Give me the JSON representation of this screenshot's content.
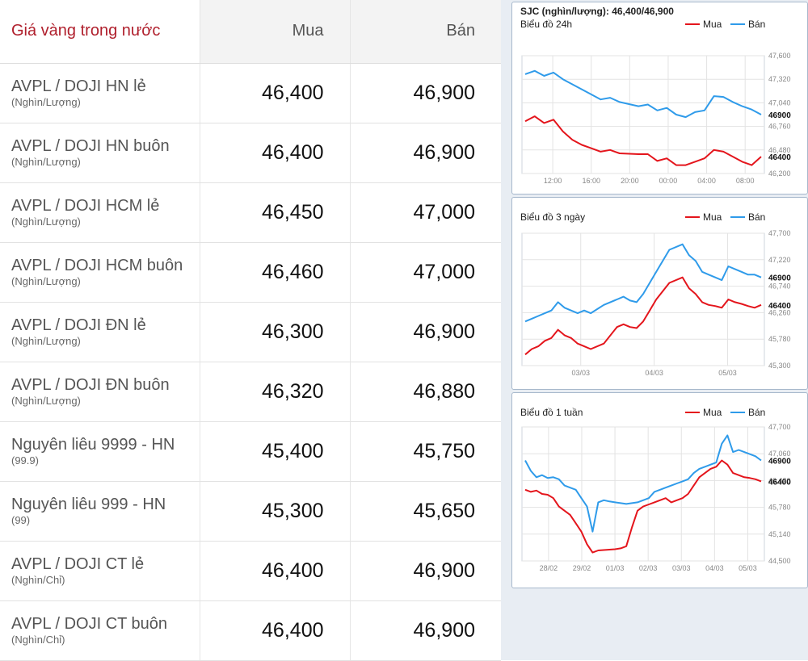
{
  "table": {
    "header": {
      "name": "Giá vàng trong nước",
      "buy": "Mua",
      "sell": "Bán"
    },
    "rows": [
      {
        "name": "AVPL / DOJI HN lẻ",
        "unit": "(Nghìn/Lượng)",
        "buy": "46,400",
        "sell": "46,900"
      },
      {
        "name": "AVPL / DOJI HN buôn",
        "unit": "(Nghìn/Lượng)",
        "buy": "46,400",
        "sell": "46,900"
      },
      {
        "name": "AVPL / DOJI HCM lẻ",
        "unit": "(Nghìn/Lượng)",
        "buy": "46,450",
        "sell": "47,000"
      },
      {
        "name": "AVPL / DOJI HCM buôn",
        "unit": "(Nghìn/Lượng)",
        "buy": "46,460",
        "sell": "47,000"
      },
      {
        "name": "AVPL / DOJI ĐN lẻ",
        "unit": "(Nghìn/Lượng)",
        "buy": "46,300",
        "sell": "46,900"
      },
      {
        "name": "AVPL / DOJI ĐN buôn",
        "unit": "(Nghìn/Lượng)",
        "buy": "46,320",
        "sell": "46,880"
      },
      {
        "name": "Nguyên liêu 9999 - HN",
        "unit": "(99.9)",
        "buy": "45,400",
        "sell": "45,750"
      },
      {
        "name": "Nguyên liêu 999 - HN",
        "unit": "(99)",
        "buy": "45,300",
        "sell": "45,650"
      },
      {
        "name": "AVPL / DOJI CT lẻ",
        "unit": "(Nghìn/Chỉ)",
        "buy": "46,400",
        "sell": "46,900"
      },
      {
        "name": "AVPL / DOJI CT buôn",
        "unit": "(Nghìn/Chỉ)",
        "buy": "46,400",
        "sell": "46,900"
      }
    ]
  },
  "charts": {
    "colors": {
      "mua": "#e4151c",
      "ban": "#2f9bea",
      "grid": "#e3e3e3",
      "frame": "#a7b8cc"
    },
    "legend": {
      "mua": "Mua",
      "ban": "Bán"
    },
    "header_title": "SJC (nghìn/lượng): 46,400/46,900"
  },
  "chart_data": [
    {
      "type": "line",
      "title": "Biểu đồ 24h",
      "x_ticks": [
        "12:00",
        "16:00",
        "20:00",
        "00:00",
        "04:00",
        "08:00"
      ],
      "y_ticks": [
        46200,
        46480,
        46760,
        47040,
        47320,
        47600
      ],
      "y_tick_labels": [
        "46,200",
        "46,480",
        "46,760",
        "47,040",
        "47,320",
        "47,600"
      ],
      "ylim": [
        46200,
        47600
      ],
      "last_labels": {
        "ban": "46900",
        "mua": "46400"
      },
      "series": [
        {
          "name": "Bán",
          "key": "ban",
          "x": [
            0,
            1,
            2,
            3,
            4,
            5,
            6,
            7,
            8,
            9,
            10,
            12,
            13,
            14,
            15,
            16,
            17,
            18,
            19,
            20,
            21,
            22,
            23,
            24,
            25
          ],
          "y": [
            47380,
            47420,
            47360,
            47400,
            47320,
            47260,
            47200,
            47140,
            47080,
            47100,
            47050,
            47000,
            47020,
            46950,
            46980,
            46900,
            46870,
            46930,
            46950,
            47120,
            47110,
            47050,
            47000,
            46960,
            46900
          ]
        },
        {
          "name": "Mua",
          "key": "mua",
          "x": [
            0,
            1,
            2,
            3,
            4,
            5,
            6,
            7,
            8,
            9,
            10,
            12,
            13,
            14,
            15,
            16,
            17,
            18,
            19,
            20,
            21,
            22,
            23,
            24,
            25
          ],
          "y": [
            46820,
            46880,
            46800,
            46840,
            46700,
            46600,
            46540,
            46500,
            46460,
            46480,
            46440,
            46430,
            46430,
            46350,
            46380,
            46300,
            46300,
            46340,
            46380,
            46480,
            46460,
            46400,
            46340,
            46300,
            46400
          ]
        }
      ]
    },
    {
      "type": "line",
      "title": "Biểu đồ 3 ngày",
      "x_ticks": [
        "03/03",
        "04/03",
        "05/03"
      ],
      "y_ticks": [
        45300,
        45780,
        46260,
        46740,
        47220,
        47700
      ],
      "y_tick_labels": [
        "45,300",
        "45,780",
        "46,260",
        "46,740",
        "47,220",
        "47,700"
      ],
      "ylim": [
        45300,
        47700
      ],
      "last_labels": {
        "ban": "46900",
        "mua": "46400"
      },
      "series": [
        {
          "name": "Bán",
          "key": "ban",
          "x": [
            0,
            2,
            4,
            6,
            8,
            10,
            12,
            14,
            16,
            18,
            20,
            24,
            28,
            30,
            32,
            34,
            36,
            38,
            40,
            44,
            48,
            50,
            52,
            54,
            56,
            58,
            60,
            62,
            64,
            66,
            68,
            70,
            72
          ],
          "y": [
            46100,
            46150,
            46200,
            46250,
            46300,
            46450,
            46350,
            46300,
            46250,
            46300,
            46250,
            46400,
            46500,
            46550,
            46480,
            46450,
            46600,
            46800,
            47000,
            47400,
            47500,
            47300,
            47200,
            47000,
            46950,
            46900,
            46850,
            47100,
            47050,
            47000,
            46950,
            46950,
            46900
          ]
        },
        {
          "name": "Mua",
          "key": "mua",
          "x": [
            0,
            2,
            4,
            6,
            8,
            10,
            12,
            14,
            16,
            18,
            20,
            24,
            28,
            30,
            32,
            34,
            36,
            38,
            40,
            44,
            48,
            50,
            52,
            54,
            56,
            58,
            60,
            62,
            64,
            66,
            68,
            70,
            72
          ],
          "y": [
            45500,
            45600,
            45650,
            45750,
            45800,
            45950,
            45850,
            45800,
            45700,
            45650,
            45600,
            45700,
            46000,
            46050,
            46000,
            45980,
            46100,
            46300,
            46500,
            46800,
            46900,
            46700,
            46600,
            46450,
            46400,
            46380,
            46350,
            46500,
            46450,
            46420,
            46380,
            46350,
            46400
          ]
        }
      ]
    },
    {
      "type": "line",
      "title": "Biểu đồ 1 tuần",
      "x_ticks": [
        "28/02",
        "29/02",
        "01/03",
        "02/03",
        "03/03",
        "04/03",
        "05/03"
      ],
      "y_ticks": [
        44500,
        45140,
        45780,
        46420,
        47060,
        47700
      ],
      "y_tick_labels": [
        "44,500",
        "45,140",
        "45,780",
        "46,420",
        "47,060",
        "47,700"
      ],
      "ylim": [
        44500,
        47700
      ],
      "last_labels": {
        "ban": "46900",
        "mua": "46400"
      },
      "series": [
        {
          "name": "Bán",
          "key": "ban",
          "x": [
            0,
            4,
            8,
            12,
            16,
            20,
            24,
            28,
            32,
            36,
            40,
            44,
            48,
            52,
            56,
            60,
            64,
            68,
            72,
            76,
            80,
            84,
            88,
            92,
            96,
            100,
            104,
            108,
            112,
            116,
            120,
            124,
            128,
            132,
            136,
            140,
            144,
            148,
            152,
            156,
            160,
            164,
            168
          ],
          "y": [
            46900,
            46650,
            46500,
            46550,
            46480,
            46500,
            46450,
            46300,
            46250,
            46200,
            46000,
            45800,
            45200,
            45900,
            45950,
            45920,
            45900,
            45880,
            45860,
            45880,
            45900,
            45950,
            46000,
            46150,
            46200,
            46250,
            46300,
            46350,
            46400,
            46450,
            46600,
            46700,
            46750,
            46800,
            46850,
            47300,
            47500,
            47100,
            47150,
            47100,
            47050,
            47000,
            46900
          ]
        },
        {
          "name": "Mua",
          "key": "mua",
          "x": [
            0,
            4,
            8,
            12,
            16,
            20,
            24,
            28,
            32,
            36,
            40,
            44,
            48,
            52,
            56,
            60,
            64,
            68,
            72,
            76,
            80,
            84,
            88,
            92,
            96,
            100,
            104,
            108,
            112,
            116,
            120,
            124,
            128,
            132,
            136,
            140,
            144,
            148,
            152,
            156,
            160,
            164,
            168
          ],
          "y": [
            46200,
            46150,
            46180,
            46100,
            46080,
            46000,
            45800,
            45700,
            45600,
            45400,
            45200,
            44900,
            44700,
            44750,
            44760,
            44770,
            44780,
            44800,
            44850,
            45300,
            45700,
            45800,
            45850,
            45900,
            45950,
            46000,
            45900,
            45950,
            46000,
            46100,
            46300,
            46500,
            46600,
            46700,
            46750,
            46900,
            46800,
            46600,
            46550,
            46500,
            46480,
            46450,
            46400
          ]
        }
      ]
    }
  ]
}
